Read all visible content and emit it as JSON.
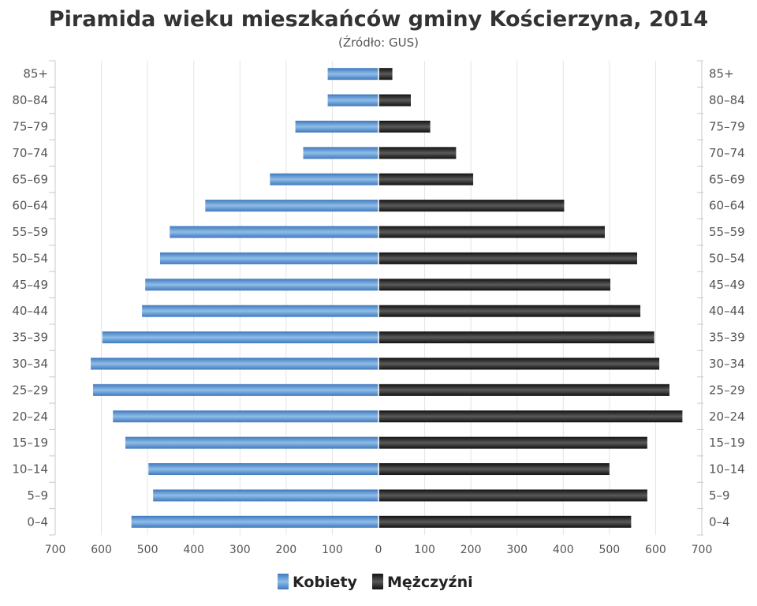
{
  "chart_data": {
    "type": "bar",
    "orientation": "horizontal",
    "title": "Piramida wieku mieszkańców gminy Kościerzyna, 2014",
    "subtitle": "(Źródło: GUS)",
    "categories": [
      "85+",
      "80-84",
      "75-79",
      "70-74",
      "65-69",
      "60-64",
      "55-59",
      "50-54",
      "45-49",
      "40-44",
      "35-39",
      "30-34",
      "25-29",
      "20-24",
      "15-19",
      "10-14",
      "5-9",
      "0-4"
    ],
    "series": [
      {
        "name": "Kobiety",
        "color": "#4a86c8",
        "side": "left",
        "values": [
          110,
          110,
          180,
          163,
          235,
          375,
          452,
          473,
          505,
          512,
          598,
          623,
          618,
          575,
          548,
          498,
          488,
          535
        ]
      },
      {
        "name": "Mężczyźni",
        "color": "#222222",
        "side": "right",
        "values": [
          30,
          70,
          112,
          168,
          205,
          402,
          490,
          560,
          502,
          567,
          597,
          608,
          630,
          658,
          582,
          500,
          582,
          547
        ]
      }
    ],
    "x_ticks": [
      "700",
      "600",
      "500",
      "400",
      "300",
      "200",
      "100",
      "0",
      "100",
      "200",
      "300",
      "400",
      "500",
      "600",
      "700"
    ],
    "xlim": [
      -700,
      700
    ],
    "grid": true,
    "legend_position": "bottom-center"
  }
}
